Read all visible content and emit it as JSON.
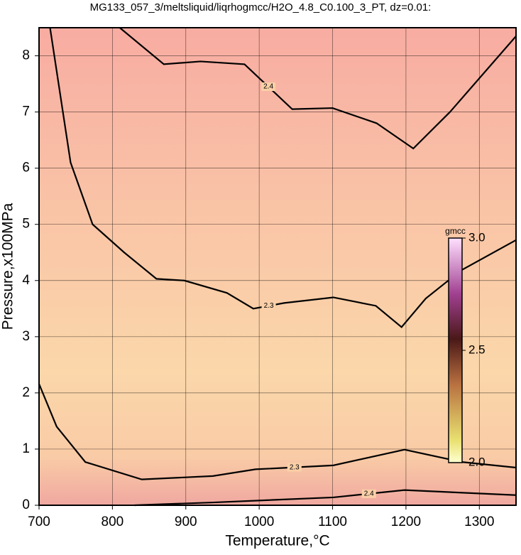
{
  "chart_data": {
    "type": "contour",
    "title": "MG133_057_3/meltsliquid/liqrhogmcc/H2O_4.8_C0.100_3_PT, dz=0.01:",
    "x_label": "Temperature,°C",
    "y_label": "Pressure,x100MPa",
    "xlim": [
      700,
      1350
    ],
    "xticks": [
      700,
      800,
      900,
      1000,
      1100,
      1200,
      1300
    ],
    "ylim": [
      0,
      8.5
    ],
    "yticks": [
      0,
      1,
      2,
      3,
      4,
      5,
      6,
      7,
      8
    ],
    "grid": true,
    "series": [
      {
        "level": 2.4,
        "x": [
          810,
          870,
          920,
          980,
          1045,
          1100,
          1160,
          1210,
          1260,
          1350
        ],
        "y": [
          8.5,
          7.85,
          7.9,
          7.85,
          7.05,
          7.07,
          6.8,
          6.35,
          7.0,
          8.35
        ]
      },
      {
        "level": 2.3,
        "x": [
          715,
          743,
          773,
          816,
          860,
          898,
          956,
          992,
          1034,
          1101,
          1159,
          1194,
          1227,
          1275,
          1350
        ],
        "y": [
          8.5,
          6.1,
          5.0,
          4.5,
          4.03,
          4.0,
          3.78,
          3.5,
          3.6,
          3.7,
          3.55,
          3.17,
          3.68,
          4.18,
          4.72
        ]
      },
      {
        "level": 2.3,
        "x": [
          700,
          724,
          763,
          840,
          937,
          995,
          1101,
          1198,
          1276,
          1350
        ],
        "y": [
          2.16,
          1.4,
          0.77,
          0.46,
          0.52,
          0.64,
          0.71,
          0.99,
          0.77,
          0.67
        ]
      },
      {
        "level": 2.4,
        "x": [
          830,
          937,
          1101,
          1198,
          1350
        ],
        "y": [
          0,
          0.05,
          0.14,
          0.27,
          0.18
        ]
      }
    ],
    "colorbar": {
      "label": "gmcc",
      "lim": [
        2,
        3
      ],
      "ticks": [
        {
          "value": 2,
          "label": "2.0"
        },
        2.5,
        {
          "value": 3,
          "label": "3.0"
        }
      ]
    }
  }
}
